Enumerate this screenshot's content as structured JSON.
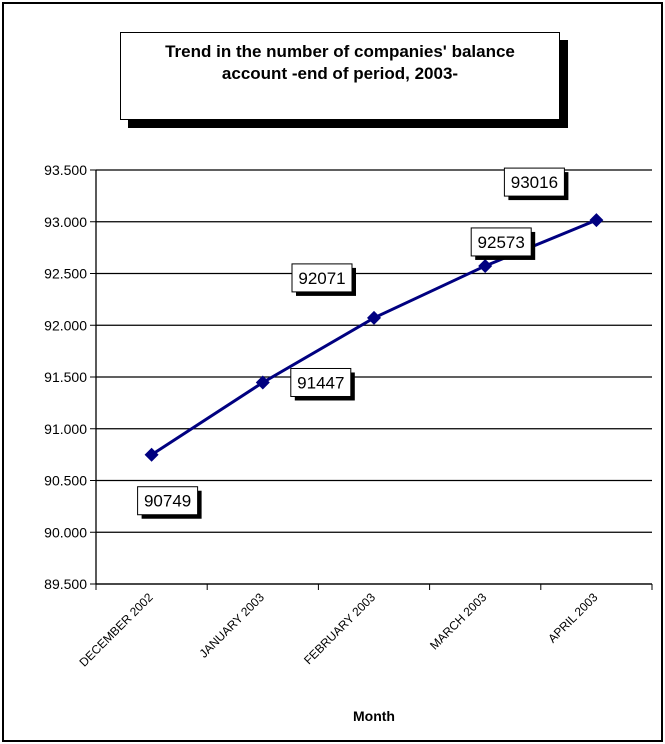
{
  "chart_data": {
    "type": "line",
    "title": "Trend in the number of companies' balance account -end of period, 2003-",
    "xlabel": "Month",
    "ylabel": "",
    "categories": [
      "DECEMBER 2002",
      "JANUARY 2003",
      "FEBRUARY 2003",
      "MARCH 2003",
      "APRIL 2003"
    ],
    "series": [
      {
        "values": [
          90749,
          91447,
          92071,
          92573,
          93016
        ]
      }
    ],
    "data_labels": [
      "90749",
      "91447",
      "92071",
      "92573",
      "93016"
    ],
    "ylim": [
      89500,
      93500
    ],
    "y_ticks": [
      89500,
      90000,
      90500,
      91000,
      91500,
      92000,
      92500,
      93000,
      93500
    ],
    "y_tick_labels": [
      "89.500",
      "90.000",
      "90.500",
      "91.000",
      "91.500",
      "92.000",
      "92.500",
      "93.000",
      "93.500"
    ],
    "grid": true,
    "legend": "none",
    "line_color": "#000080"
  }
}
